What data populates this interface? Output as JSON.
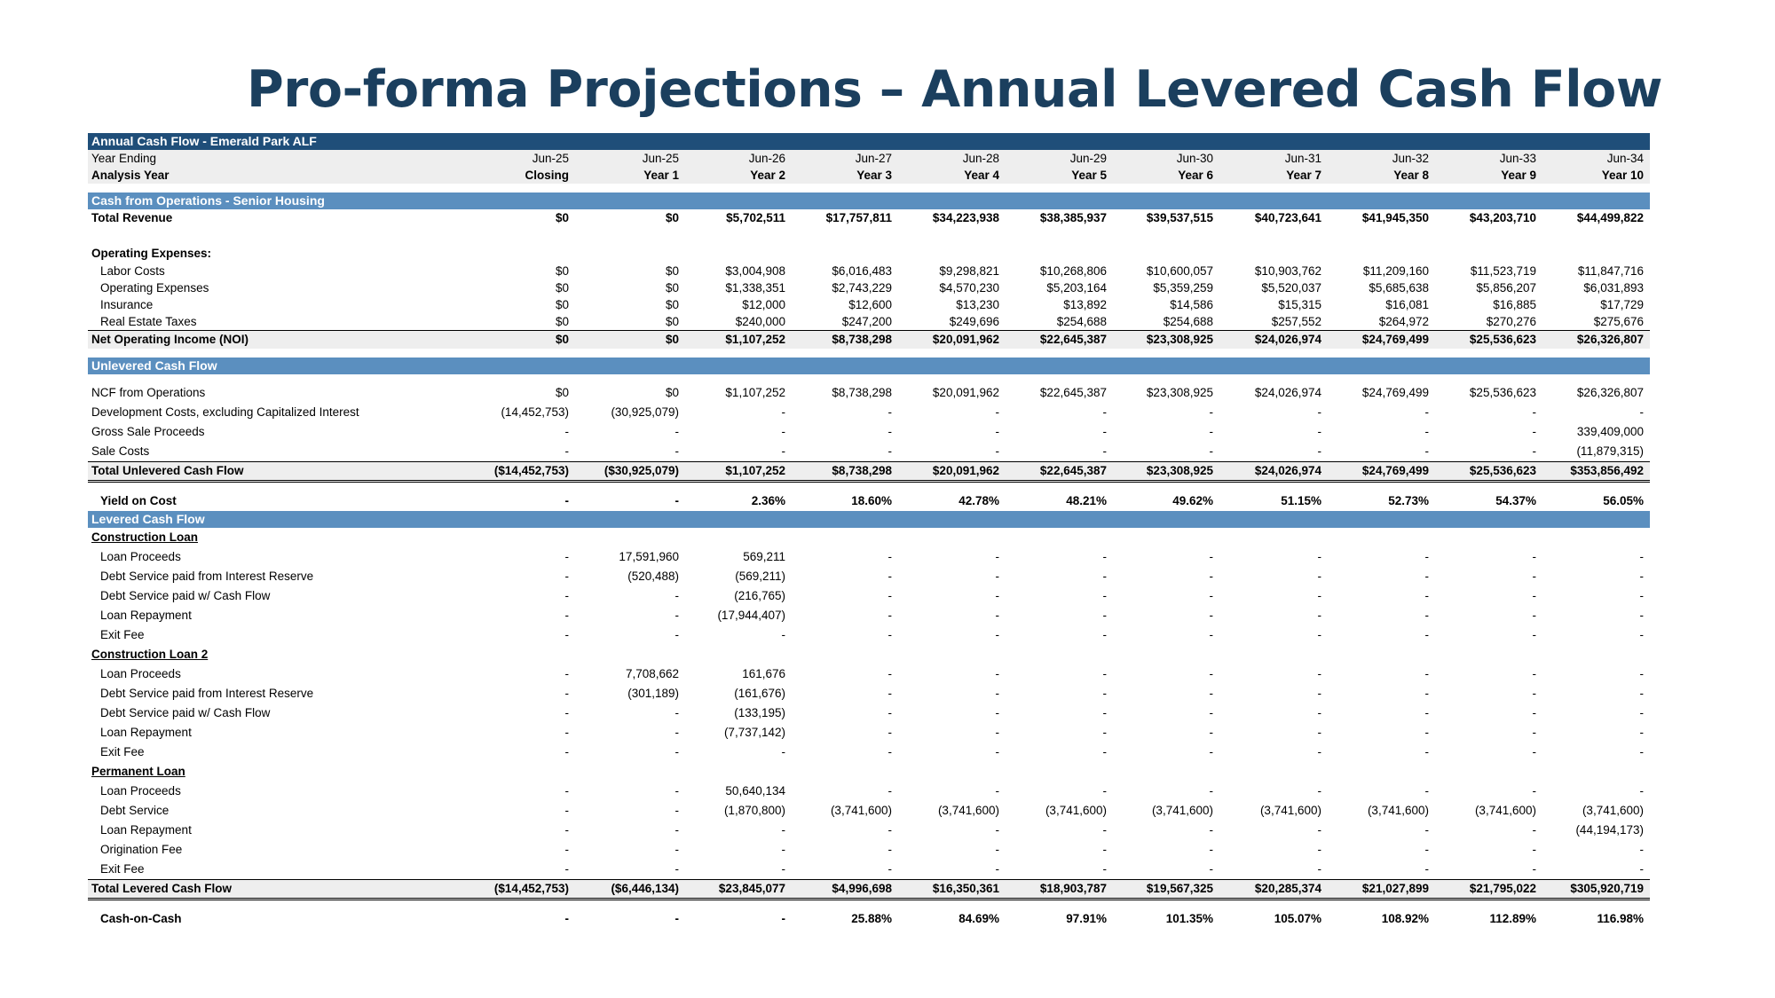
{
  "title": "Pro-forma Projections – Annual Levered Cash Flow",
  "colors": {
    "dark_band": "#1f4e79",
    "mid_band": "#5b8fbf",
    "title": "#1b3f5e"
  },
  "sheet_title": "Annual Cash Flow - Emerald Park ALF",
  "header": {
    "year_ending_label": "Year Ending",
    "year_ending": [
      "Jun-25",
      "Jun-25",
      "Jun-26",
      "Jun-27",
      "Jun-28",
      "Jun-29",
      "Jun-30",
      "Jun-31",
      "Jun-32",
      "Jun-33",
      "Jun-34"
    ],
    "analysis_year_label": "Analysis Year",
    "analysis_year": [
      "Closing",
      "Year 1",
      "Year 2",
      "Year 3",
      "Year 4",
      "Year 5",
      "Year 6",
      "Year 7",
      "Year 8",
      "Year 9",
      "Year 10"
    ]
  },
  "operations": {
    "section_title": "Cash from Operations - Senior Housing",
    "total_revenue": {
      "label": "Total Revenue",
      "values": [
        "$0",
        "$0",
        "$5,702,511",
        "$17,757,811",
        "$34,223,938",
        "$38,385,937",
        "$39,537,515",
        "$40,723,641",
        "$41,945,350",
        "$43,203,710",
        "$44,499,822"
      ]
    },
    "opex_label": "Operating Expenses:",
    "opex": [
      {
        "label": "Labor Costs",
        "values": [
          "$0",
          "$0",
          "$3,004,908",
          "$6,016,483",
          "$9,298,821",
          "$10,268,806",
          "$10,600,057",
          "$10,903,762",
          "$11,209,160",
          "$11,523,719",
          "$11,847,716"
        ]
      },
      {
        "label": "Operating Expenses",
        "values": [
          "$0",
          "$0",
          "$1,338,351",
          "$2,743,229",
          "$4,570,230",
          "$5,203,164",
          "$5,359,259",
          "$5,520,037",
          "$5,685,638",
          "$5,856,207",
          "$6,031,893"
        ]
      },
      {
        "label": "Insurance",
        "values": [
          "$0",
          "$0",
          "$12,000",
          "$12,600",
          "$13,230",
          "$13,892",
          "$14,586",
          "$15,315",
          "$16,081",
          "$16,885",
          "$17,729"
        ]
      },
      {
        "label": "Real Estate Taxes",
        "values": [
          "$0",
          "$0",
          "$240,000",
          "$247,200",
          "$249,696",
          "$254,688",
          "$254,688",
          "$257,552",
          "$264,972",
          "$270,276",
          "$275,676"
        ]
      }
    ],
    "noi": {
      "label": "Net Operating Income (NOI)",
      "values": [
        "$0",
        "$0",
        "$1,107,252",
        "$8,738,298",
        "$20,091,962",
        "$22,645,387",
        "$23,308,925",
        "$24,026,974",
        "$24,769,499",
        "$25,536,623",
        "$26,326,807"
      ]
    }
  },
  "unlevered": {
    "section_title": "Unlevered Cash Flow",
    "rows": [
      {
        "label": "NCF from Operations",
        "values": [
          "$0",
          "$0",
          "$1,107,252",
          "$8,738,298",
          "$20,091,962",
          "$22,645,387",
          "$23,308,925",
          "$24,026,974",
          "$24,769,499",
          "$25,536,623",
          "$26,326,807"
        ]
      },
      {
        "label": "Development Costs, excluding Capitalized Interest",
        "values": [
          "(14,452,753)",
          "(30,925,079)",
          "-",
          "-",
          "-",
          "-",
          "-",
          "-",
          "-",
          "-",
          "-"
        ]
      },
      {
        "label": "Gross Sale Proceeds",
        "values": [
          "-",
          "-",
          "-",
          "-",
          "-",
          "-",
          "-",
          "-",
          "-",
          "-",
          "339,409,000"
        ]
      },
      {
        "label": "Sale Costs",
        "values": [
          "-",
          "-",
          "-",
          "-",
          "-",
          "-",
          "-",
          "-",
          "-",
          "-",
          "(11,879,315)"
        ]
      }
    ],
    "total": {
      "label": "Total Unlevered Cash Flow",
      "values": [
        "($14,452,753)",
        "($30,925,079)",
        "$1,107,252",
        "$8,738,298",
        "$20,091,962",
        "$22,645,387",
        "$23,308,925",
        "$24,026,974",
        "$24,769,499",
        "$25,536,623",
        "$353,856,492"
      ]
    },
    "yield": {
      "label": "Yield on Cost",
      "values": [
        "-",
        "-",
        "2.36%",
        "18.60%",
        "42.78%",
        "48.21%",
        "49.62%",
        "51.15%",
        "52.73%",
        "54.37%",
        "56.05%"
      ]
    }
  },
  "levered": {
    "section_title": "Levered Cash Flow",
    "groups": [
      {
        "title": "Construction Loan",
        "rows": [
          {
            "label": "Loan Proceeds",
            "values": [
              "-",
              "17,591,960",
              "569,211",
              "-",
              "-",
              "-",
              "-",
              "-",
              "-",
              "-",
              "-"
            ]
          },
          {
            "label": "Debt Service paid from Interest Reserve",
            "values": [
              "-",
              "(520,488)",
              "(569,211)",
              "-",
              "-",
              "-",
              "-",
              "-",
              "-",
              "-",
              "-"
            ]
          },
          {
            "label": "Debt Service paid w/ Cash Flow",
            "values": [
              "-",
              "-",
              "(216,765)",
              "-",
              "-",
              "-",
              "-",
              "-",
              "-",
              "-",
              "-"
            ]
          },
          {
            "label": "Loan Repayment",
            "values": [
              "-",
              "-",
              "(17,944,407)",
              "-",
              "-",
              "-",
              "-",
              "-",
              "-",
              "-",
              "-"
            ]
          },
          {
            "label": "Exit Fee",
            "values": [
              "-",
              "-",
              "-",
              "-",
              "-",
              "-",
              "-",
              "-",
              "-",
              "-",
              "-"
            ]
          }
        ]
      },
      {
        "title": "Construction Loan 2",
        "rows": [
          {
            "label": "Loan Proceeds",
            "values": [
              "-",
              "7,708,662",
              "161,676",
              "-",
              "-",
              "-",
              "-",
              "-",
              "-",
              "-",
              "-"
            ]
          },
          {
            "label": "Debt Service paid from Interest Reserve",
            "values": [
              "-",
              "(301,189)",
              "(161,676)",
              "-",
              "-",
              "-",
              "-",
              "-",
              "-",
              "-",
              "-"
            ]
          },
          {
            "label": "Debt Service paid w/ Cash Flow",
            "values": [
              "-",
              "-",
              "(133,195)",
              "-",
              "-",
              "-",
              "-",
              "-",
              "-",
              "-",
              "-"
            ]
          },
          {
            "label": "Loan Repayment",
            "values": [
              "-",
              "-",
              "(7,737,142)",
              "-",
              "-",
              "-",
              "-",
              "-",
              "-",
              "-",
              "-"
            ]
          },
          {
            "label": "Exit Fee",
            "values": [
              "-",
              "-",
              "-",
              "-",
              "-",
              "-",
              "-",
              "-",
              "-",
              "-",
              "-"
            ]
          }
        ]
      },
      {
        "title": "Permanent Loan",
        "rows": [
          {
            "label": "Loan Proceeds",
            "values": [
              "-",
              "-",
              "50,640,134",
              "-",
              "-",
              "-",
              "-",
              "-",
              "-",
              "-",
              "-"
            ]
          },
          {
            "label": "Debt Service",
            "values": [
              "-",
              "-",
              "(1,870,800)",
              "(3,741,600)",
              "(3,741,600)",
              "(3,741,600)",
              "(3,741,600)",
              "(3,741,600)",
              "(3,741,600)",
              "(3,741,600)",
              "(3,741,600)"
            ]
          },
          {
            "label": "Loan Repayment",
            "values": [
              "-",
              "-",
              "-",
              "-",
              "-",
              "-",
              "-",
              "-",
              "-",
              "-",
              "(44,194,173)"
            ]
          },
          {
            "label": "Origination Fee",
            "values": [
              "-",
              "-",
              "-",
              "-",
              "-",
              "-",
              "-",
              "-",
              "-",
              "-",
              "-"
            ]
          },
          {
            "label": "Exit Fee",
            "values": [
              "-",
              "-",
              "-",
              "-",
              "-",
              "-",
              "-",
              "-",
              "-",
              "-",
              "-"
            ]
          }
        ]
      }
    ],
    "total": {
      "label": "Total Levered Cash Flow",
      "values": [
        "($14,452,753)",
        "($6,446,134)",
        "$23,845,077",
        "$4,996,698",
        "$16,350,361",
        "$18,903,787",
        "$19,567,325",
        "$20,285,374",
        "$21,027,899",
        "$21,795,022",
        "$305,920,719"
      ]
    },
    "cash_on_cash": {
      "label": "Cash-on-Cash",
      "values": [
        "-",
        "-",
        "-",
        "25.88%",
        "84.69%",
        "97.91%",
        "101.35%",
        "105.07%",
        "108.92%",
        "112.89%",
        "116.98%"
      ]
    }
  }
}
